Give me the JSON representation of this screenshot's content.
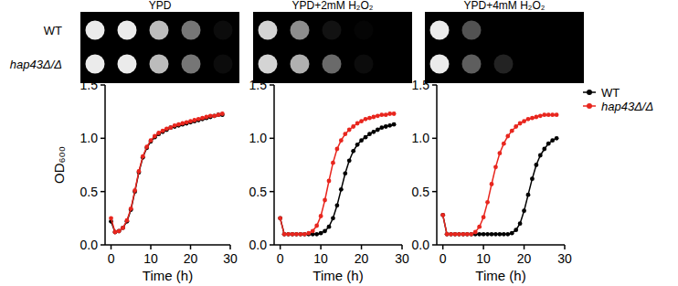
{
  "spot_assay": {
    "strains": [
      "WT",
      "hap43Δ/Δ"
    ],
    "panels": [
      {
        "title": "YPD",
        "growth": [
          [
            1,
            1,
            0.8,
            0.5,
            0.05
          ],
          [
            1,
            1,
            0.8,
            0.5,
            0.05
          ]
        ]
      },
      {
        "title": "YPD+2mM H₂O₂",
        "growth": [
          [
            0.9,
            0.6,
            0.08,
            0.02,
            0
          ],
          [
            0.9,
            0.75,
            0.45,
            0.05,
            0
          ]
        ]
      },
      {
        "title": "YPD+4mM H₂O₂",
        "growth": [
          [
            1,
            0.35,
            0,
            0,
            0
          ],
          [
            1,
            0.4,
            0.15,
            0,
            0
          ]
        ]
      }
    ]
  },
  "chart_data": [
    {
      "type": "line",
      "y_label": "OD₆₀₀",
      "x_label": "Time (h)",
      "x": [
        0,
        1,
        2,
        3,
        4,
        5,
        6,
        7,
        8,
        9,
        10,
        11,
        12,
        13,
        14,
        15,
        16,
        17,
        18,
        19,
        20,
        21,
        22,
        23,
        24,
        25,
        26,
        27,
        28
      ],
      "xlim": [
        -1.5,
        30
      ],
      "xticks": [
        0,
        10,
        20,
        30
      ],
      "ylim": [
        0,
        1.5
      ],
      "yticks": [
        {
          "value": 0,
          "label": "0.0"
        },
        {
          "value": 0.5,
          "label": "0.5"
        },
        {
          "value": 1,
          "label": "1.0"
        },
        {
          "value": 1.5,
          "label": "1.5"
        }
      ],
      "marker": "circle",
      "line_style": "solid",
      "series": [
        {
          "name": "WT",
          "color": "#000000",
          "values": [
            0.22,
            0.12,
            0.13,
            0.16,
            0.22,
            0.33,
            0.5,
            0.68,
            0.82,
            0.91,
            0.97,
            1.01,
            1.04,
            1.06,
            1.08,
            1.1,
            1.11,
            1.12,
            1.13,
            1.14,
            1.15,
            1.16,
            1.17,
            1.18,
            1.19,
            1.2,
            1.21,
            1.22,
            1.22
          ]
        },
        {
          "name": "hap43Δ/Δ",
          "color": "#e8261e",
          "values": [
            0.25,
            0.12,
            0.13,
            0.16,
            0.23,
            0.34,
            0.51,
            0.69,
            0.83,
            0.92,
            0.98,
            1.02,
            1.05,
            1.07,
            1.09,
            1.1,
            1.12,
            1.13,
            1.14,
            1.15,
            1.16,
            1.17,
            1.18,
            1.19,
            1.2,
            1.21,
            1.21,
            1.22,
            1.23
          ]
        }
      ]
    },
    {
      "type": "line",
      "x_label": "Time (h)",
      "x": [
        0,
        1,
        2,
        3,
        4,
        5,
        6,
        7,
        8,
        9,
        10,
        11,
        12,
        13,
        14,
        15,
        16,
        17,
        18,
        19,
        20,
        21,
        22,
        23,
        24,
        25,
        26,
        27,
        28
      ],
      "xlim": [
        -1.5,
        30
      ],
      "xticks": [
        0,
        10,
        20,
        30
      ],
      "ylim": [
        0,
        1.5
      ],
      "yticks": [
        {
          "value": 0,
          "label": "0.0"
        },
        {
          "value": 0.5,
          "label": "0.5"
        },
        {
          "value": 1,
          "label": "1.0"
        },
        {
          "value": 1.5,
          "label": "1.5"
        }
      ],
      "marker": "circle",
      "line_style": "solid",
      "series": [
        {
          "name": "WT",
          "color": "#000000",
          "values": [
            0.25,
            0.1,
            0.1,
            0.1,
            0.1,
            0.1,
            0.1,
            0.1,
            0.1,
            0.1,
            0.11,
            0.13,
            0.17,
            0.25,
            0.37,
            0.52,
            0.67,
            0.79,
            0.88,
            0.94,
            0.98,
            1.01,
            1.04,
            1.06,
            1.08,
            1.1,
            1.11,
            1.12,
            1.13
          ]
        },
        {
          "name": "hap43Δ/Δ",
          "color": "#e8261e",
          "values": [
            0.25,
            0.1,
            0.1,
            0.1,
            0.1,
            0.1,
            0.1,
            0.11,
            0.13,
            0.18,
            0.27,
            0.42,
            0.6,
            0.77,
            0.9,
            0.98,
            1.04,
            1.08,
            1.11,
            1.14,
            1.16,
            1.18,
            1.19,
            1.2,
            1.21,
            1.22,
            1.22,
            1.23,
            1.23
          ]
        }
      ]
    },
    {
      "type": "line",
      "x_label": "Time (h)",
      "legend": "right",
      "x": [
        0,
        1,
        2,
        3,
        4,
        5,
        6,
        7,
        8,
        9,
        10,
        11,
        12,
        13,
        14,
        15,
        16,
        17,
        18,
        19,
        20,
        21,
        22,
        23,
        24,
        25,
        26,
        27,
        28
      ],
      "xlim": [
        -1.5,
        30
      ],
      "xticks": [
        0,
        10,
        20,
        30
      ],
      "ylim": [
        0,
        1.5
      ],
      "yticks": [
        {
          "value": 0,
          "label": "0.0"
        },
        {
          "value": 0.5,
          "label": "0.5"
        },
        {
          "value": 1,
          "label": "1.0"
        },
        {
          "value": 1.5,
          "label": "1.5"
        }
      ],
      "marker": "circle",
      "line_style": "solid",
      "series": [
        {
          "name": "WT",
          "color": "#000000",
          "values": [
            0.28,
            0.1,
            0.1,
            0.1,
            0.1,
            0.1,
            0.1,
            0.1,
            0.1,
            0.1,
            0.1,
            0.1,
            0.1,
            0.1,
            0.1,
            0.1,
            0.1,
            0.11,
            0.14,
            0.2,
            0.32,
            0.47,
            0.62,
            0.75,
            0.84,
            0.9,
            0.95,
            0.98,
            1.0
          ]
        },
        {
          "name": "hap43Δ/Δ",
          "color": "#e8261e",
          "values": [
            0.28,
            0.1,
            0.1,
            0.1,
            0.1,
            0.1,
            0.1,
            0.1,
            0.12,
            0.17,
            0.26,
            0.4,
            0.57,
            0.73,
            0.86,
            0.95,
            1.02,
            1.07,
            1.11,
            1.14,
            1.16,
            1.18,
            1.19,
            1.2,
            1.21,
            1.22,
            1.22,
            1.22,
            1.22
          ]
        }
      ]
    }
  ]
}
